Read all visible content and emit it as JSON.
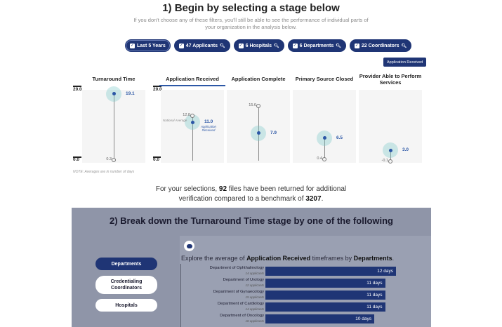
{
  "section1": {
    "title": "1) Begin by selecting a stage below",
    "subtitle": "If you don't choose any of these filters, you'll still be able to see the performance of individual parts of your organization in the analysis below."
  },
  "filters": [
    {
      "label": "Last 5 Years",
      "has_search": false
    },
    {
      "label": "47 Applicants",
      "has_search": true
    },
    {
      "label": "6 Hospitals",
      "has_search": true
    },
    {
      "label": "6 Departments",
      "has_search": true
    },
    {
      "label": "22 Coordinators",
      "has_search": true
    }
  ],
  "badge": "Application Received",
  "axis": {
    "max_label": "20.0",
    "min_label": "0.0",
    "max": 20,
    "min": 0
  },
  "chart_data": {
    "type": "scatter",
    "categories": [
      "Turnaround Time",
      "Application Received",
      "Application Complete",
      "Primary Source Closed",
      "Provider Able to Perform Services"
    ],
    "series": [
      {
        "values": [
          19.1,
          11.0,
          7.9,
          6.5,
          3.0
        ]
      }
    ],
    "national_average": [
      0.3,
      12.8,
      15.6,
      0.4,
      -0.1
    ],
    "ylim": [
      0,
      20
    ],
    "selected": "Application Received"
  },
  "stages": [
    {
      "label": "Turnaround Time",
      "value_label": "19.1",
      "avg_label": "0.3",
      "extra": ""
    },
    {
      "label": "Application Received",
      "value_label": "11.0",
      "avg_label": "12.8",
      "extra": "Application Received",
      "avg_caption": "National Average"
    },
    {
      "label": "Application Complete",
      "value_label": "7.9",
      "avg_label": "15.6",
      "extra": ""
    },
    {
      "label": "Primary Source Closed",
      "value_label": "6.5",
      "avg_label": "0.4",
      "extra": ""
    },
    {
      "label": "Provider Able to Perform Services",
      "value_label": "3.0",
      "avg_label": "-0.1",
      "extra": ""
    }
  ],
  "note": "NOTE: Averages are in number of days",
  "summary": {
    "pre": "For your selections, ",
    "files": "92",
    "mid": " files have been returned for additional verification compared to a benchmark of ",
    "benchmark": "3207",
    "post": "."
  },
  "section2": {
    "title": "2) Break down the Turnaround Time stage by one of the following",
    "explore_pre": "Explore the average of ",
    "explore_stage": "Application Received",
    "explore_mid": " timeframes by ",
    "explore_dim": "Departments",
    "explore_post": ".",
    "options": [
      "Departments",
      "Credentialing Coordinators",
      "Hospitals"
    ]
  },
  "departments": [
    {
      "name": "Department of Ophthalmology",
      "sub": "14 applicants",
      "days": 12,
      "label": "12 days"
    },
    {
      "name": "Department of Urology",
      "sub": "12 applicants",
      "days": 11,
      "label": "11 days"
    },
    {
      "name": "Department of Gynaecology",
      "sub": "15 applicants",
      "days": 11,
      "label": "11 days"
    },
    {
      "name": "Department of Cardiology",
      "sub": "14 applicants",
      "days": 11,
      "label": "11 days"
    },
    {
      "name": "Department of Oncology",
      "sub": "18 applicants",
      "days": 10,
      "label": "10 days"
    }
  ]
}
